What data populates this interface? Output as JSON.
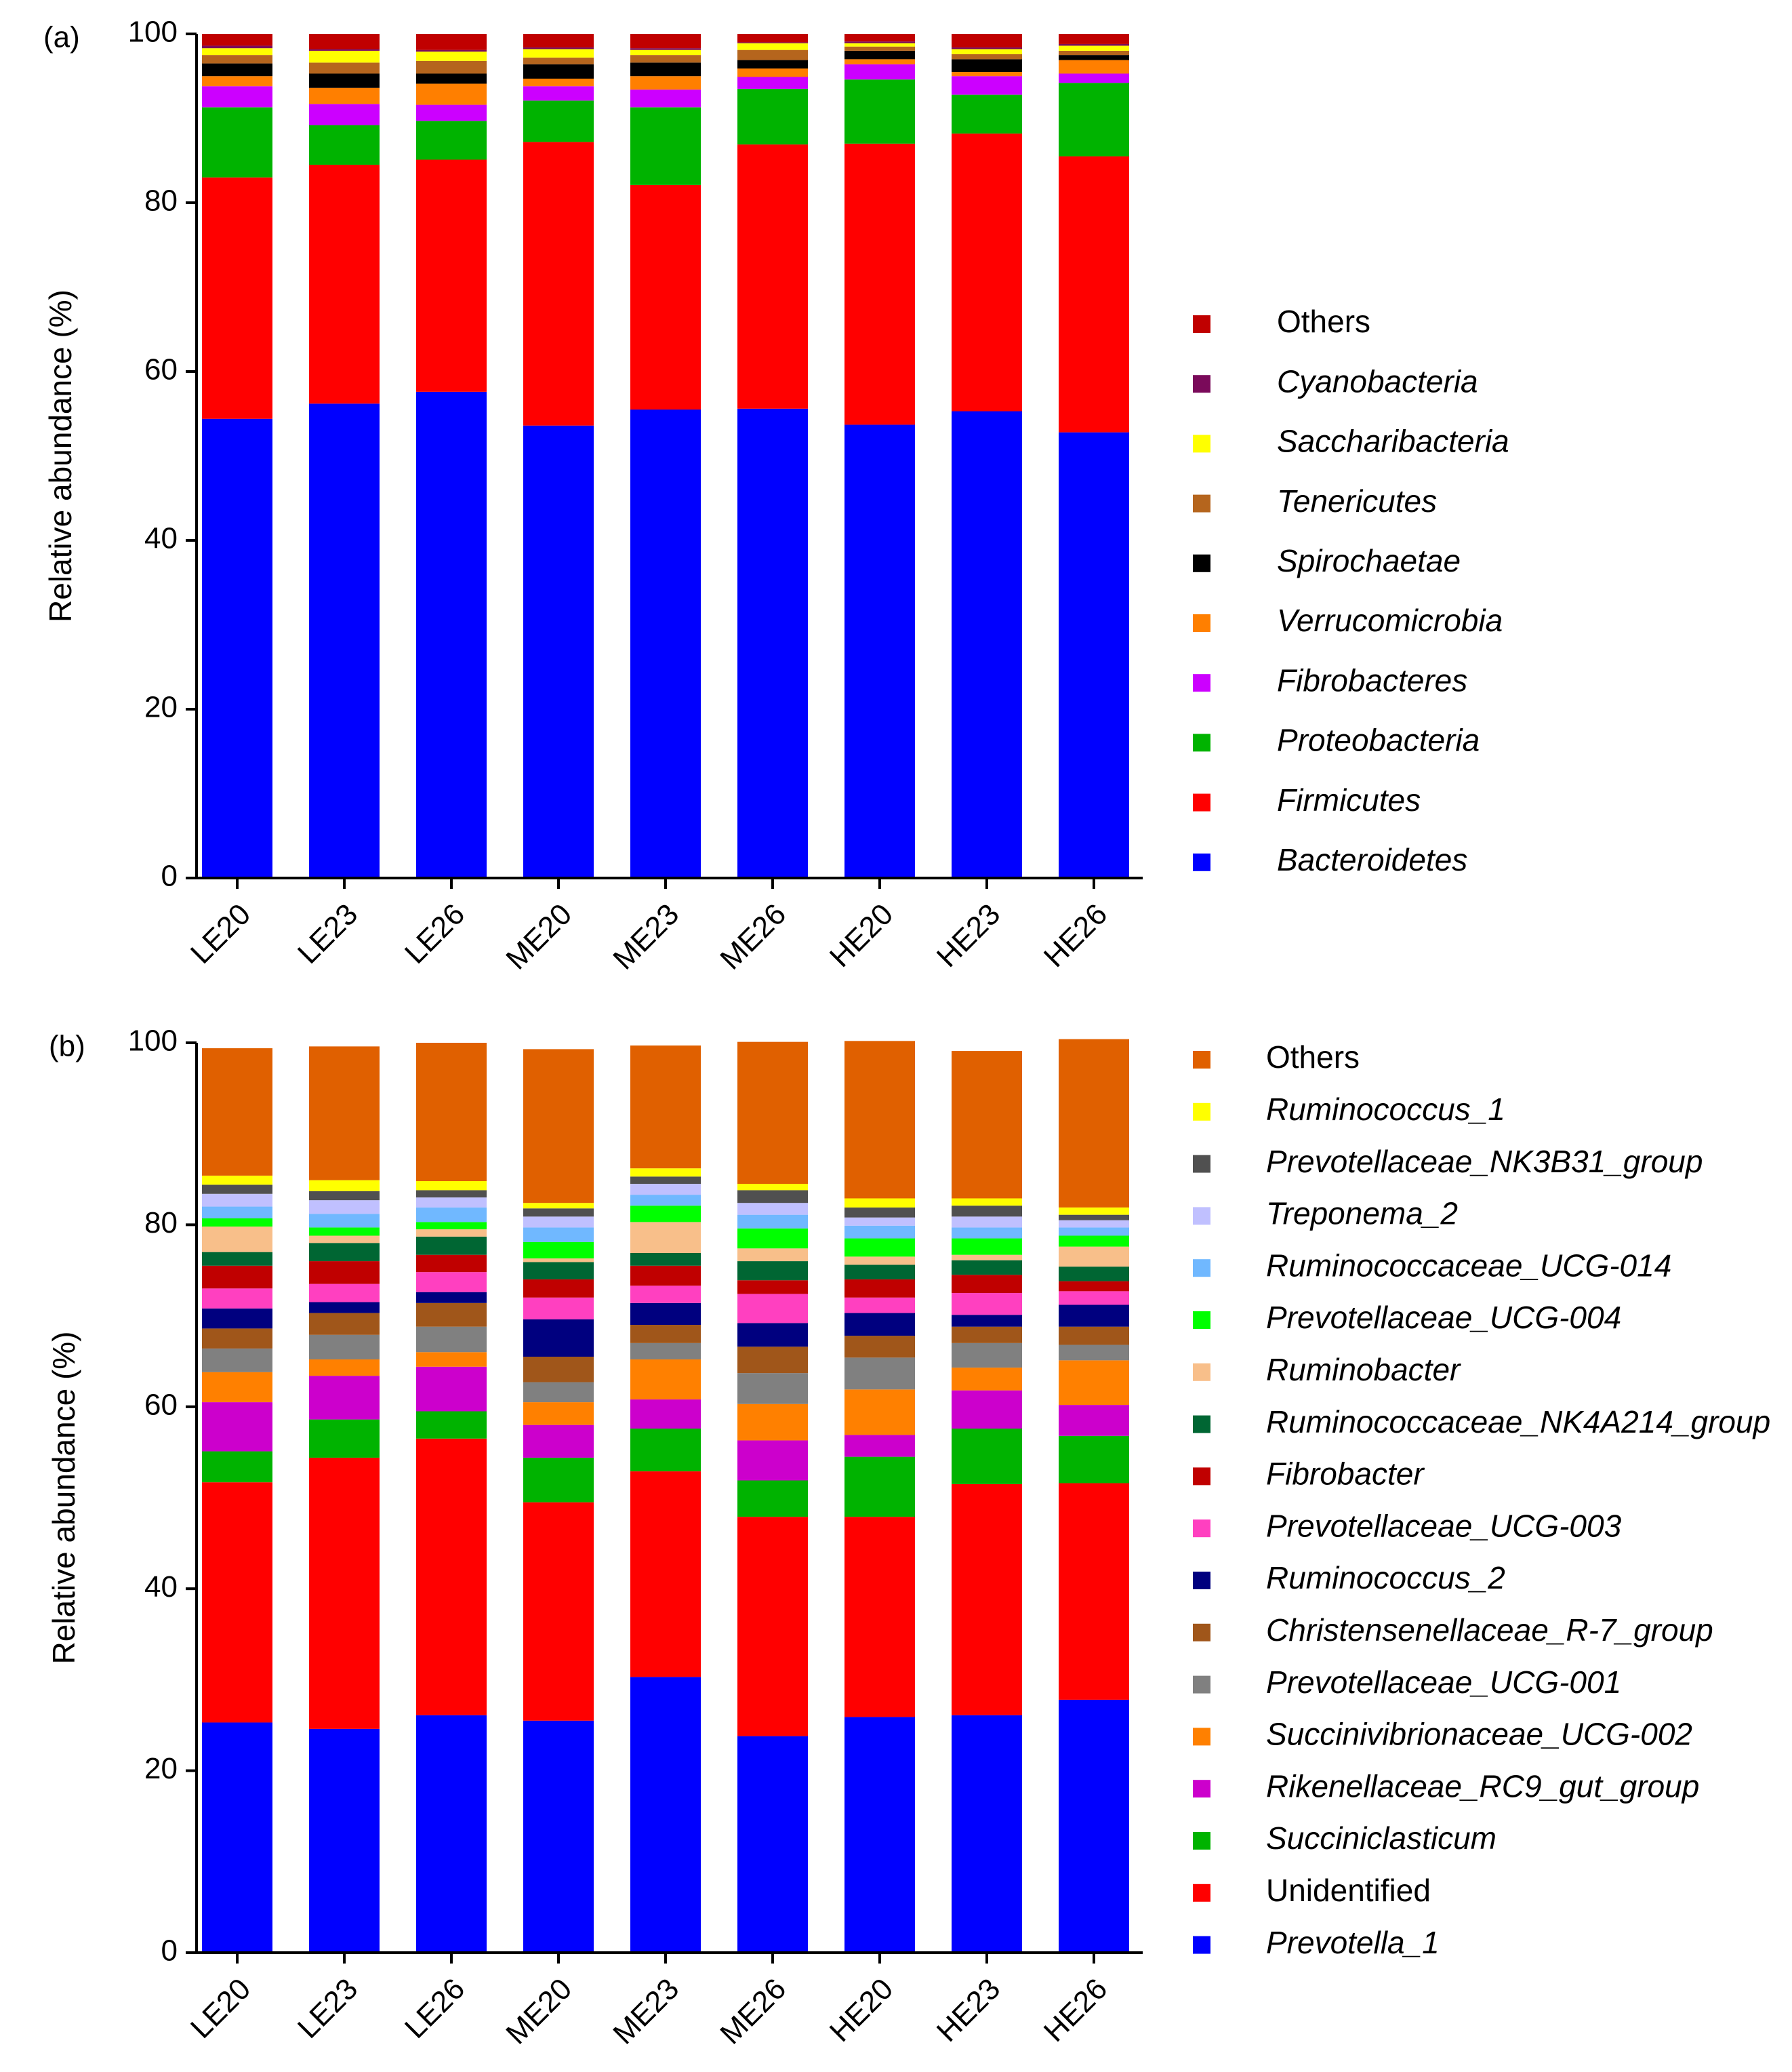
{
  "figure": {
    "panels": [
      "(a)",
      "(b)"
    ]
  },
  "chart_data": [
    {
      "type": "bar",
      "stacked": true,
      "panel_label": "(a)",
      "title": "",
      "xlabel": "",
      "ylabel": "Relative abundance (%)",
      "ylim": [
        0,
        100
      ],
      "yticks": [
        0,
        20,
        40,
        60,
        80,
        100
      ],
      "grid": false,
      "legend_position": "right",
      "categories": [
        "LE20",
        "LE23",
        "LE26",
        "ME20",
        "ME23",
        "ME26",
        "HE20",
        "HE23",
        "HE26"
      ],
      "series": [
        {
          "name": "Bacteroidetes",
          "italic": true,
          "color": "#0000ff",
          "values": [
            54.4,
            56.2,
            57.6,
            53.6,
            55.5,
            55.6,
            53.7,
            55.3,
            52.8
          ]
        },
        {
          "name": "Firmicutes",
          "italic": true,
          "color": "#ff0000",
          "values": [
            28.6,
            28.3,
            27.5,
            33.6,
            26.6,
            31.3,
            33.3,
            32.9,
            32.7
          ]
        },
        {
          "name": "Proteobacteria",
          "italic": true,
          "color": "#00b300",
          "values": [
            8.3,
            4.7,
            4.6,
            4.9,
            9.2,
            6.6,
            7.6,
            4.6,
            8.7
          ]
        },
        {
          "name": "Fibrobacteres",
          "italic": true,
          "color": "#cc00ff",
          "values": [
            2.5,
            2.5,
            1.9,
            1.7,
            2.1,
            1.4,
            1.8,
            2.2,
            1.1
          ]
        },
        {
          "name": "Verrucomicrobia",
          "italic": true,
          "color": "#ff7f00",
          "values": [
            1.2,
            1.9,
            2.5,
            0.9,
            1.6,
            1.0,
            0.6,
            0.5,
            1.6
          ]
        },
        {
          "name": "Spirochaetae",
          "italic": true,
          "color": "#000000",
          "values": [
            1.5,
            1.7,
            1.2,
            1.7,
            1.6,
            1.0,
            1.0,
            1.5,
            0.6
          ]
        },
        {
          "name": "Tenericutes",
          "italic": true,
          "color": "#b5651d",
          "values": [
            1.0,
            1.3,
            1.5,
            0.8,
            0.9,
            1.2,
            0.5,
            0.6,
            0.5
          ]
        },
        {
          "name": "Saccharibacteria",
          "italic": true,
          "color": "#ffff00",
          "values": [
            0.8,
            1.4,
            1.1,
            1.0,
            0.6,
            0.8,
            0.4,
            0.6,
            0.6
          ]
        },
        {
          "name": "Cyanobacteria",
          "italic": true,
          "color": "#7a0a5a",
          "values": [
            0.3,
            0.2,
            0.2,
            0.2,
            0.2,
            0.1,
            0.2,
            0.2,
            0.2
          ]
        },
        {
          "name": "Others",
          "italic": false,
          "color": "#c00000",
          "values": [
            1.4,
            1.8,
            1.9,
            1.6,
            1.7,
            1.0,
            0.9,
            1.6,
            1.2
          ]
        }
      ]
    },
    {
      "type": "bar",
      "stacked": true,
      "panel_label": "(b)",
      "title": "",
      "xlabel": "",
      "ylabel": "Relative abundance (%)",
      "ylim": [
        0,
        100
      ],
      "yticks": [
        0,
        20,
        40,
        60,
        80,
        100
      ],
      "grid": false,
      "legend_position": "right",
      "categories": [
        "LE20",
        "LE23",
        "LE26",
        "ME20",
        "ME23",
        "ME26",
        "HE20",
        "HE23",
        "HE26"
      ],
      "series": [
        {
          "name": "Prevotella_1",
          "italic": true,
          "color": "#0000ff",
          "values": [
            25.3,
            24.6,
            26.1,
            25.5,
            30.3,
            23.8,
            25.9,
            26.1,
            27.8
          ]
        },
        {
          "name": "Unidentified",
          "italic": false,
          "color": "#ff0000",
          "values": [
            26.4,
            29.8,
            30.4,
            24.0,
            22.6,
            24.1,
            22.0,
            25.4,
            23.8
          ]
        },
        {
          "name": "Succiniclasticum",
          "italic": true,
          "color": "#00b300",
          "values": [
            3.4,
            4.2,
            3.0,
            4.9,
            4.7,
            4.0,
            6.6,
            6.1,
            5.2
          ]
        },
        {
          "name": "Rikenellaceae_RC9_gut_group",
          "italic": true,
          "color": "#cc00cc",
          "values": [
            5.4,
            4.8,
            4.9,
            3.6,
            3.2,
            4.4,
            2.4,
            4.2,
            3.4
          ]
        },
        {
          "name": "Succinivibrionaceae_UCG-002",
          "italic": true,
          "color": "#ff8000",
          "values": [
            3.3,
            1.8,
            1.6,
            2.5,
            4.4,
            4.0,
            5.0,
            2.5,
            4.9
          ]
        },
        {
          "name": "Prevotellaceae_UCG-001",
          "italic": true,
          "color": "#808080",
          "values": [
            2.6,
            2.7,
            2.8,
            2.2,
            1.8,
            3.4,
            3.5,
            2.7,
            1.7
          ]
        },
        {
          "name": "Christensenellaceae_R-7_group",
          "italic": true,
          "color": "#a0561a",
          "values": [
            2.2,
            2.4,
            2.6,
            2.8,
            2.0,
            2.9,
            2.4,
            1.8,
            2.0
          ]
        },
        {
          "name": "Ruminococcus_2",
          "italic": true,
          "color": "#00007f",
          "values": [
            2.2,
            1.2,
            1.2,
            4.1,
            2.4,
            2.6,
            2.5,
            1.3,
            2.4
          ]
        },
        {
          "name": "Prevotellaceae_UCG-003",
          "italic": true,
          "color": "#ff40c0",
          "values": [
            2.2,
            2.0,
            2.2,
            2.4,
            1.9,
            3.2,
            1.7,
            2.4,
            1.5
          ]
        },
        {
          "name": "Fibrobacter",
          "italic": true,
          "color": "#c00000",
          "values": [
            2.5,
            2.5,
            1.9,
            2.0,
            2.2,
            1.5,
            2.0,
            2.0,
            1.1
          ]
        },
        {
          "name": "Ruminococcaceae_NK4A214_group",
          "italic": true,
          "color": "#006633",
          "values": [
            1.5,
            2.0,
            2.0,
            1.9,
            1.4,
            2.1,
            1.6,
            1.6,
            1.6
          ]
        },
        {
          "name": "Ruminobacter",
          "italic": true,
          "color": "#f8bf8a",
          "values": [
            2.8,
            0.8,
            0.8,
            0.4,
            3.4,
            1.4,
            0.9,
            0.6,
            2.2
          ]
        },
        {
          "name": "Prevotellaceae_UCG-004",
          "italic": true,
          "color": "#00ff00",
          "values": [
            0.9,
            0.9,
            0.8,
            1.8,
            1.8,
            2.2,
            2.0,
            1.8,
            1.2
          ]
        },
        {
          "name": "Ruminococcaceae_UCG-014",
          "italic": true,
          "color": "#70b8ff",
          "values": [
            1.3,
            1.5,
            1.6,
            1.6,
            1.2,
            1.5,
            1.4,
            1.2,
            0.9
          ]
        },
        {
          "name": "Treponema_2",
          "italic": true,
          "color": "#c0c0ff",
          "values": [
            1.4,
            1.5,
            1.1,
            1.2,
            1.2,
            1.3,
            0.9,
            1.2,
            0.8
          ]
        },
        {
          "name": "Prevotellaceae_NK3B31_group",
          "italic": true,
          "color": "#505050",
          "values": [
            1.0,
            1.0,
            0.8,
            0.9,
            0.8,
            1.4,
            1.1,
            1.2,
            0.6
          ]
        },
        {
          "name": "Ruminococcus_1",
          "italic": true,
          "color": "#ffff00",
          "values": [
            1.0,
            1.2,
            1.0,
            0.6,
            0.9,
            0.7,
            1.0,
            0.8,
            0.8
          ]
        },
        {
          "name": "Others",
          "italic": false,
          "color": "#e06000",
          "values": [
            14.0,
            14.7,
            15.2,
            16.9,
            13.5,
            15.6,
            17.3,
            16.2,
            18.5
          ]
        }
      ]
    }
  ]
}
